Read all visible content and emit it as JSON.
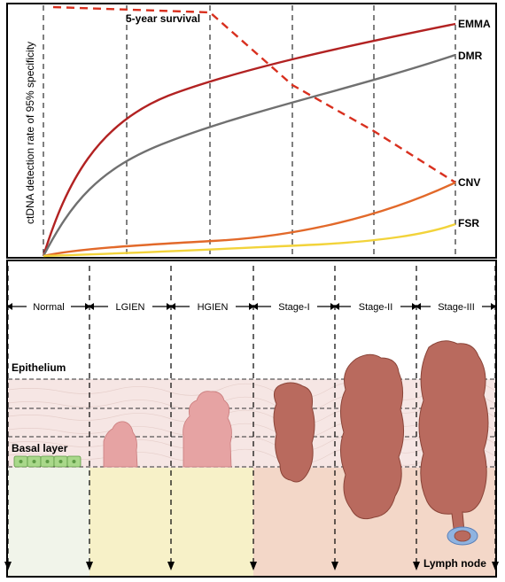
{
  "chart": {
    "ylabel": "ctDNA detection rate of 95% specificity",
    "survival_label": "5-year survival",
    "series": [
      {
        "name": "EMMA",
        "color": "#b22222"
      },
      {
        "name": "DMR",
        "color": "#707070"
      },
      {
        "name": "CNV",
        "color": "#e2692a"
      },
      {
        "name": "FSR",
        "color": "#f2d33a"
      }
    ]
  },
  "stages": [
    "Normal",
    "LGIEN",
    "HGIEN",
    "Stage-I",
    "Stage-II",
    "Stage-III"
  ],
  "tissue": {
    "epithelium_label": "Epithelium",
    "basal_label": "Basal layer",
    "lymph_label": "Lymph node"
  },
  "colors": {
    "survival": "#d8301f",
    "tumor": "#b96a5e",
    "lesion": "#e6a3a3",
    "normal_cells": "#a9d88a",
    "bg_normal": "#f1f4ea",
    "bg_lgien": "#f7f1c8",
    "bg_stage": "#f3d7c8"
  }
}
